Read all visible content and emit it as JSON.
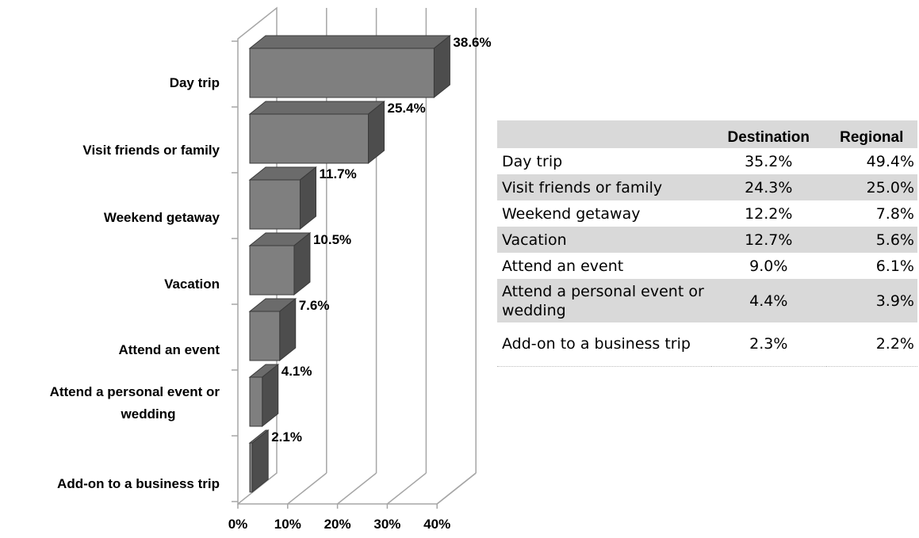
{
  "chart_data": {
    "type": "bar",
    "orientation": "horizontal",
    "style": "3d",
    "categories": [
      "Day trip",
      "Visit friends or family",
      "Weekend getaway",
      "Vacation",
      "Attend an event",
      "Attend a personal event or wedding",
      "Add-on to a business trip"
    ],
    "category_lines": [
      [
        "Day trip"
      ],
      [
        "Visit friends or family"
      ],
      [
        "Weekend getaway"
      ],
      [
        "Vacation"
      ],
      [
        "Attend an event"
      ],
      [
        "Attend a personal event or",
        "wedding"
      ],
      [
        "Add-on to a business trip"
      ]
    ],
    "values": [
      38.6,
      25.4,
      11.7,
      10.5,
      7.6,
      4.1,
      2.1
    ],
    "value_labels": [
      "38.6%",
      "25.4%",
      "11.7%",
      "10.5%",
      "7.6%",
      "4.1%",
      "2.1%"
    ],
    "x_ticks": [
      "0%",
      "10%",
      "20%",
      "30%",
      "40%"
    ],
    "xlim": [
      0,
      40
    ],
    "grid": true,
    "bar_color": "#7f7f7f"
  },
  "table": {
    "headers": [
      "",
      "Destination",
      "Regional"
    ],
    "rows": [
      {
        "label": "Day trip",
        "destination": "35.2%",
        "regional": "49.4%"
      },
      {
        "label": "Visit friends or family",
        "destination": "24.3%",
        "regional": "25.0%"
      },
      {
        "label": "Weekend getaway",
        "destination": "12.2%",
        "regional": "7.8%"
      },
      {
        "label": "Vacation",
        "destination": "12.7%",
        "regional": "5.6%"
      },
      {
        "label": "Attend an event",
        "destination": "9.0%",
        "regional": "6.1%"
      },
      {
        "label": "Attend a personal event or wedding",
        "destination": "4.4%",
        "regional": "3.9%"
      },
      {
        "label": "Add-on to a business trip",
        "destination": "2.3%",
        "regional": "2.2%"
      }
    ]
  }
}
